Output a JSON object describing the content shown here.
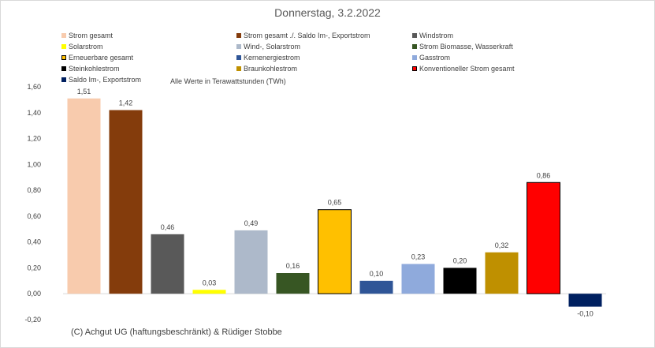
{
  "chart_data": {
    "type": "bar",
    "title": "Donnerstag, 3.2.2022",
    "xlabel": "",
    "ylabel": "",
    "ylim": [
      -0.2,
      1.6
    ],
    "yticks": [
      "-0,20",
      "0,00",
      "0,20",
      "0,40",
      "0,60",
      "0,80",
      "1,00",
      "1,20",
      "1,40",
      "1,60"
    ],
    "grid": false,
    "legend_position": "top",
    "categories": [
      "Strom gesamt",
      "Strom gesamt ./. Saldo Im-, Exportstrom",
      "Windstrom",
      "Solarstrom",
      "Wind-, Solarstrom",
      "Strom Biomasse, Wasserkraft",
      "Erneuerbare gesamt",
      "Kernenergiestrom",
      "Gasstrom",
      "Steinkohlestrom",
      "Braunkohlestrom",
      "Konventioneller Strom gesamt",
      "Saldo Im-, Exportstrom"
    ],
    "values": [
      1.51,
      1.42,
      0.46,
      0.03,
      0.49,
      0.16,
      0.65,
      0.1,
      0.23,
      0.2,
      0.32,
      0.86,
      -0.1
    ],
    "value_labels": [
      "1,51",
      "1,42",
      "0,46",
      "0,03",
      "0,49",
      "0,16",
      "0,65",
      "0,10",
      "0,23",
      "0,20",
      "0,32",
      "0,86",
      "-0,10"
    ],
    "colors": [
      "#f8cbad",
      "#843c0c",
      "#595959",
      "#ffff00",
      "#adb9ca",
      "#375623",
      "#ffc000",
      "#2f5597",
      "#8faadc",
      "#000000",
      "#bf9000",
      "#ff0000",
      "#002060"
    ],
    "outlined": [
      false,
      false,
      false,
      false,
      false,
      false,
      true,
      false,
      false,
      false,
      false,
      true,
      false
    ],
    "note": "Alle Werte in Terawattstunden (TWh)"
  },
  "footer": {
    "copyright": "(C) Achgut UG (haftungsbeschränkt) & Rüdiger Stobbe"
  }
}
